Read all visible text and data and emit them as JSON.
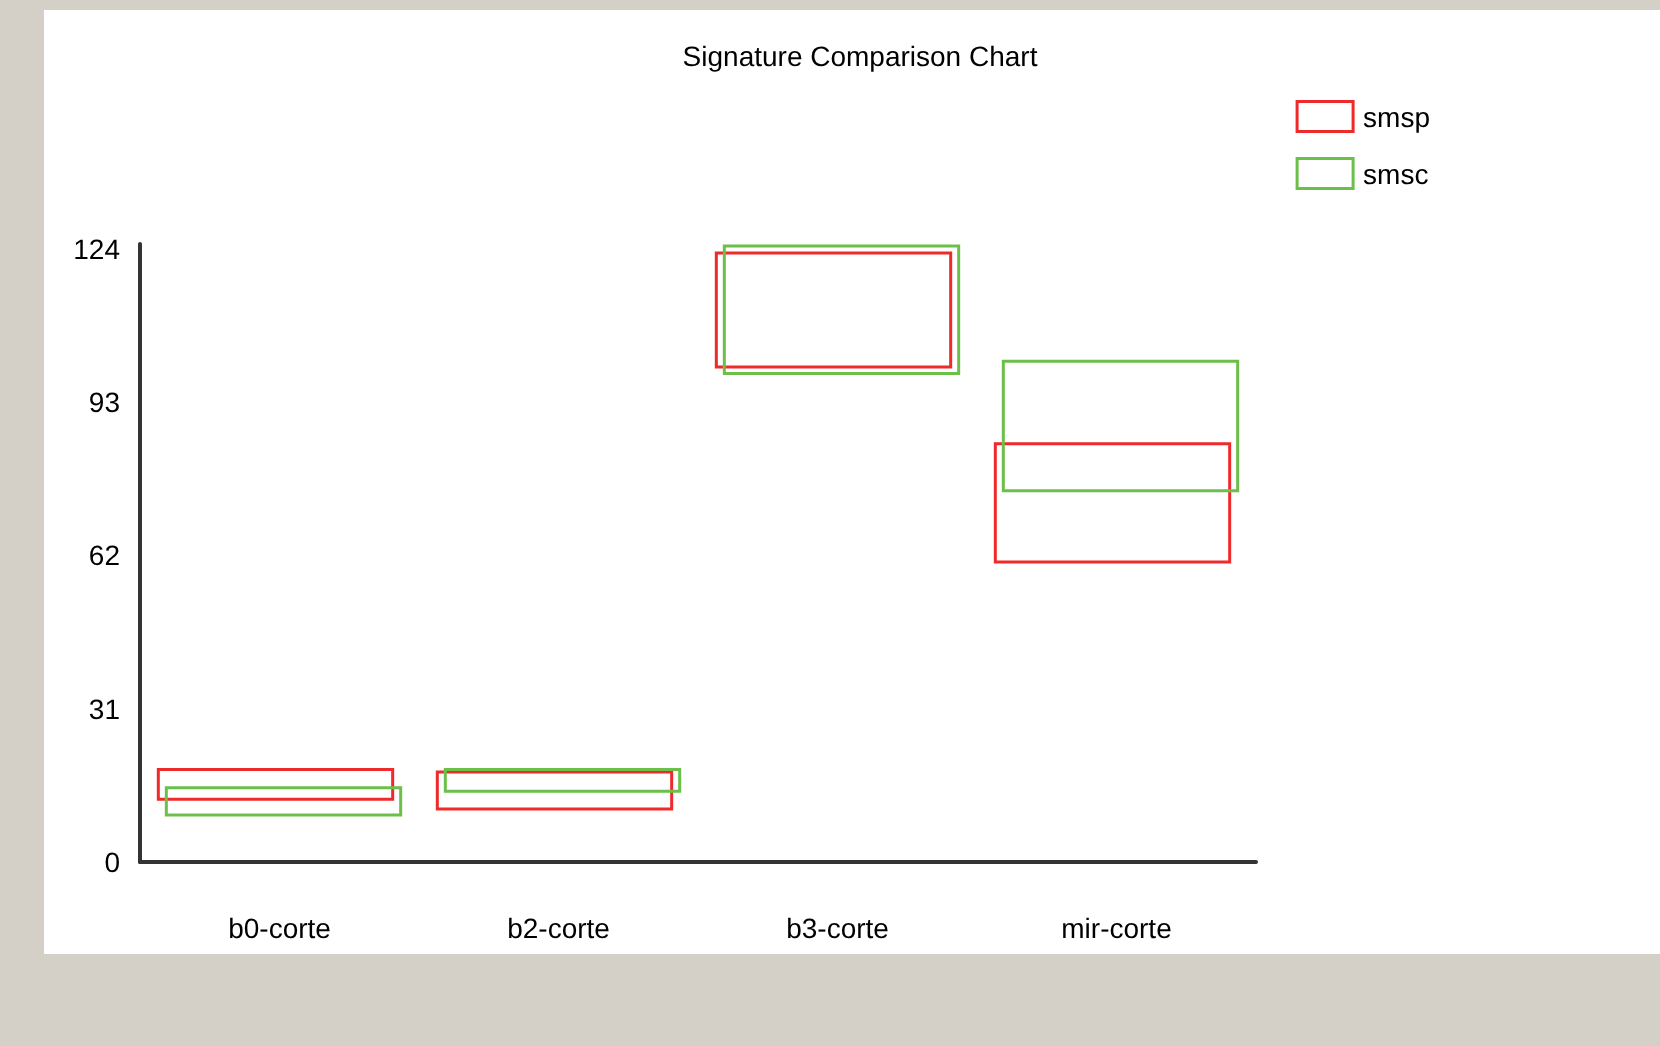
{
  "chart_data": {
    "type": "bar",
    "title": "Signature Comparison Chart",
    "categories": [
      "b0-corte",
      "b2-corte",
      "b3-corte",
      "mir-corte"
    ],
    "series": [
      {
        "name": "smsp",
        "color": "#ee2a2a",
        "base": [
          12.7,
          10.7,
          100.1,
          60.7
        ],
        "values": [
          6.0,
          7.5,
          23.1,
          23.9
        ]
      },
      {
        "name": "smsc",
        "color": "#6cc04a",
        "base": [
          9.5,
          14.3,
          98.8,
          75.1
        ],
        "values": [
          5.5,
          4.4,
          25.8,
          26.2
        ]
      }
    ],
    "ylim": [
      0,
      125
    ],
    "yticks": [
      0,
      31,
      62,
      93,
      124
    ],
    "grid": false,
    "legend": "top right"
  }
}
